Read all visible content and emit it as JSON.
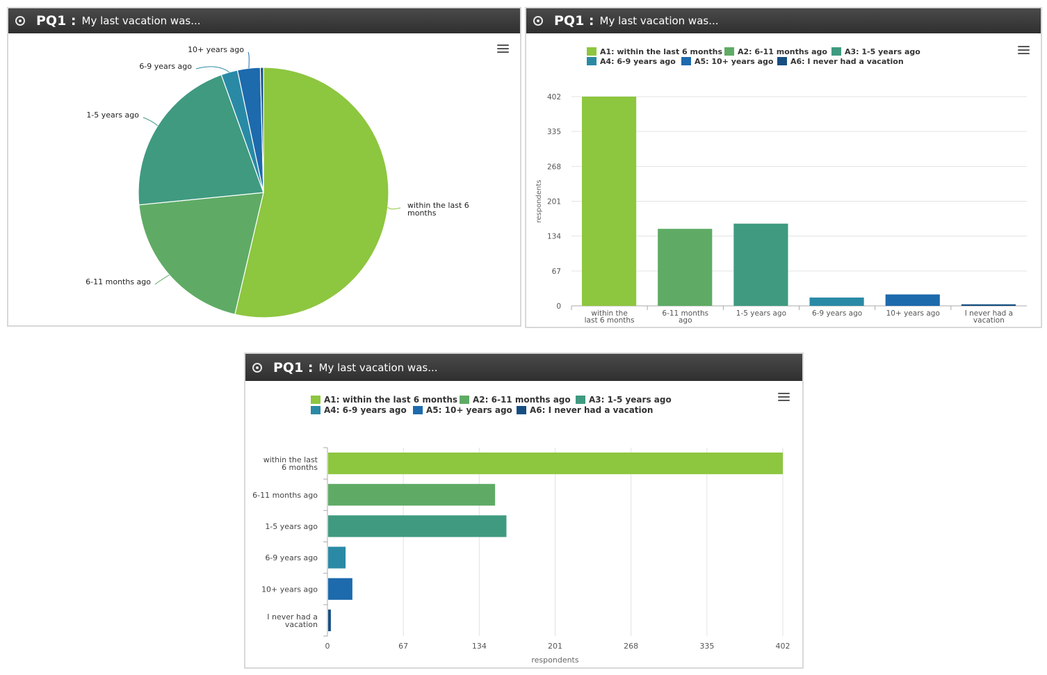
{
  "panels": [
    {
      "id": "PQ1 :",
      "question": "My last vacation was..."
    },
    {
      "id": "PQ1 :",
      "question": "My last vacation was..."
    },
    {
      "id": "PQ1 :",
      "question": "My last vacation was..."
    }
  ],
  "colors": [
    "#8dc63f",
    "#5fab65",
    "#3f9a80",
    "#2a8aa6",
    "#1d6aad",
    "#164e82"
  ],
  "legend": [
    "A1: within the last 6 months",
    "A2: 6-11 months ago",
    "A3: 1-5 years ago",
    "A4: 6-9 years ago",
    "A5: 10+ years ago",
    "A6: I never had a vacation"
  ],
  "chart_data": [
    {
      "type": "pie",
      "categories": [
        "within the last 6 months",
        "6-11 months ago",
        "1-5 years ago",
        "6-9 years ago",
        "10+ years ago",
        "I never had a vacation"
      ],
      "values": [
        402,
        148,
        158,
        16,
        22,
        3
      ],
      "slice_labels": [
        [
          "within the last 6",
          "months"
        ],
        [
          "6-11 months ago"
        ],
        [
          "1-5 years ago"
        ],
        [
          "6-9 years ago"
        ],
        [
          "10+ years ago"
        ],
        []
      ]
    },
    {
      "type": "bar",
      "categories": [
        [
          "within the",
          "last 6 months"
        ],
        [
          "6-11 months",
          "ago"
        ],
        [
          "1-5 years ago"
        ],
        [
          "6-9 years ago"
        ],
        [
          "10+ years ago"
        ],
        [
          "I never had a",
          "vacation"
        ]
      ],
      "values": [
        402,
        148,
        158,
        16,
        22,
        3
      ],
      "ylabel": "respondents",
      "yticks": [
        0,
        67,
        134,
        201,
        268,
        335,
        402
      ],
      "ylim": [
        0,
        402
      ],
      "legend": "top-center"
    },
    {
      "type": "bar",
      "orientation": "horizontal",
      "categories": [
        [
          "within the last",
          "6 months"
        ],
        [
          "6-11 months ago"
        ],
        [
          "1-5 years ago"
        ],
        [
          "6-9 years ago"
        ],
        [
          "10+ years ago"
        ],
        [
          "I never had a",
          "vacation"
        ]
      ],
      "values": [
        402,
        148,
        158,
        16,
        22,
        3
      ],
      "xlabel": "respondents",
      "xticks": [
        0,
        67,
        134,
        201,
        268,
        335,
        402
      ],
      "xlim": [
        0,
        402
      ],
      "legend": "top-center"
    }
  ]
}
